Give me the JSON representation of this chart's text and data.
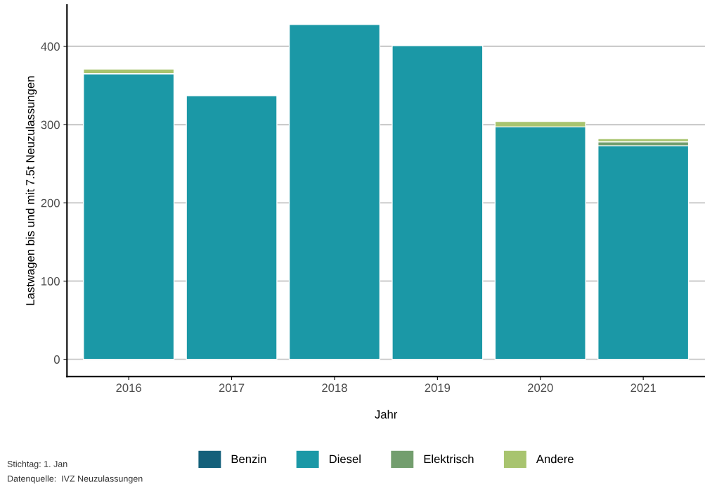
{
  "chart_data": {
    "type": "bar",
    "stacked": true,
    "xlabel": "Jahr",
    "ylabel": "Lastwagen bis und mit 7.5t Neuzulassungen",
    "categories": [
      "2016",
      "2017",
      "2018",
      "2019",
      "2020",
      "2021"
    ],
    "series": [
      {
        "name": "Benzin",
        "color": "#14607a",
        "values": [
          null,
          null,
          null,
          null,
          null,
          null
        ]
      },
      {
        "name": "Diesel",
        "color": "#1b98a6",
        "values": [
          365,
          337,
          428,
          401,
          297,
          273
        ]
      },
      {
        "name": "Elektrisch",
        "color": "#739e6e",
        "values": [
          null,
          null,
          null,
          null,
          null,
          5
        ]
      },
      {
        "name": "Andere",
        "color": "#a8c46f",
        "values": [
          6,
          null,
          null,
          null,
          7,
          4
        ]
      }
    ],
    "ylim": [
      -22,
      453
    ],
    "yticks": [
      0,
      100,
      200,
      300,
      400
    ],
    "grid": "y",
    "legend": "bottom",
    "annotations": [
      "Stichtag: 1. Jan",
      "Datenquelle:  IVZ Neuzulassungen"
    ]
  }
}
